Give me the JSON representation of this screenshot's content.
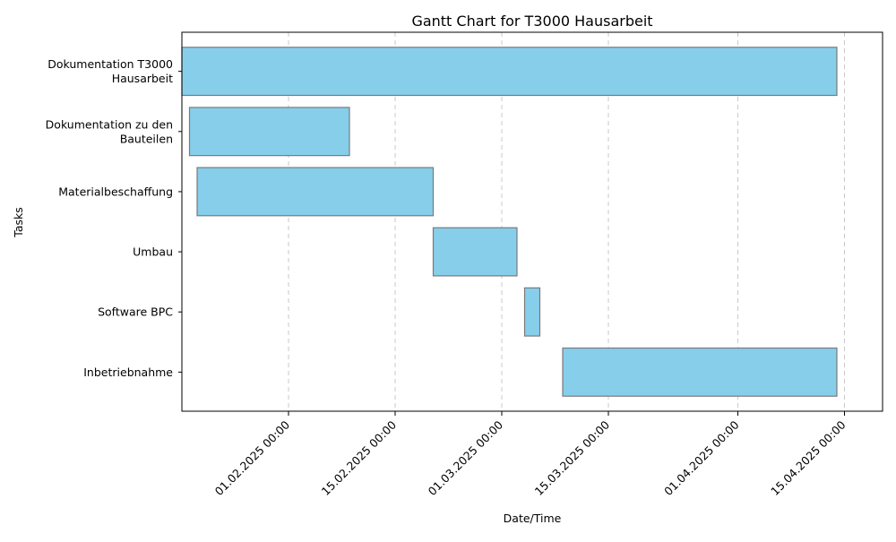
{
  "chart_data": {
    "type": "gantt",
    "title": "Gantt Chart for T3000 Hausarbeit",
    "xlabel": "Date/Time",
    "ylabel": "Tasks",
    "x_axis_type": "date",
    "xlim": [
      "2025-01-18",
      "2025-04-20"
    ],
    "x_ticks": [
      {
        "date": "2025-02-01",
        "label": "01.02.2025 00:00"
      },
      {
        "date": "2025-02-15",
        "label": "15.02.2025 00:00"
      },
      {
        "date": "2025-03-01",
        "label": "01.03.2025 00:00"
      },
      {
        "date": "2025-03-15",
        "label": "15.03.2025 00:00"
      },
      {
        "date": "2025-04-01",
        "label": "01.04.2025 00:00"
      },
      {
        "date": "2025-04-15",
        "label": "15.04.2025 00:00"
      }
    ],
    "grid": "x-dashed",
    "bar_color": "#87CEEB",
    "bar_edge_color": "#7a7a7a",
    "tasks": [
      {
        "name": "Dokumentation T3000\nHausarbeit",
        "start": "2025-01-18",
        "end": "2025-04-14"
      },
      {
        "name": "Dokumentation zu den\nBauteilen",
        "start": "2025-01-19",
        "end": "2025-02-09"
      },
      {
        "name": "Materialbeschaffung",
        "start": "2025-01-20",
        "end": "2025-02-20"
      },
      {
        "name": "Umbau",
        "start": "2025-02-20",
        "end": "2025-03-03"
      },
      {
        "name": "Software BPC",
        "start": "2025-03-04",
        "end": "2025-03-06"
      },
      {
        "name": "Inbetriebnahme",
        "start": "2025-03-09",
        "end": "2025-04-14"
      }
    ]
  }
}
